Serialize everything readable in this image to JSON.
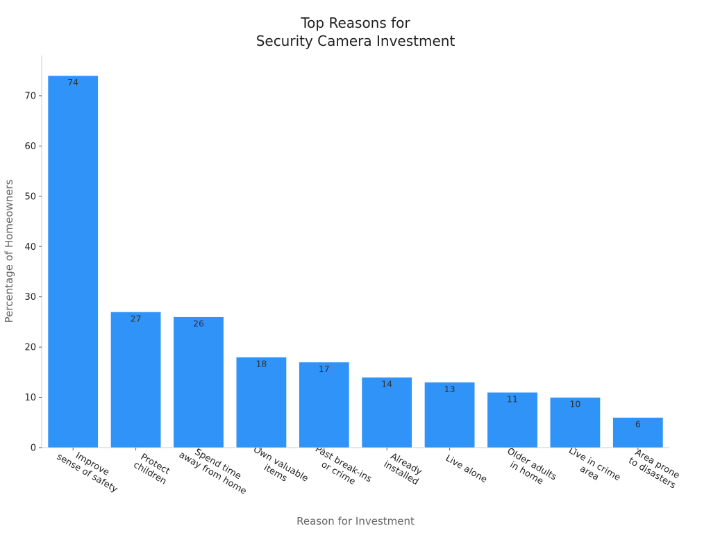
{
  "chart_data": {
    "type": "bar",
    "title_lines": [
      "Top Reasons for",
      "Security Camera Investment"
    ],
    "xlabel": "Reason for Investment",
    "ylabel": "Percentage of Homeowners",
    "categories": [
      [
        "Improve",
        "sense of safety"
      ],
      [
        "Protect",
        "children"
      ],
      [
        "Spend time",
        "away from home"
      ],
      [
        "Own valuable",
        "items"
      ],
      [
        "Past break-ins",
        "or crime"
      ],
      [
        "Already",
        "installed"
      ],
      [
        "Live alone"
      ],
      [
        "Older adults",
        "in home"
      ],
      [
        "Live in crime",
        "area"
      ],
      [
        "Area prone",
        "to disasters"
      ]
    ],
    "values": [
      74,
      27,
      26,
      18,
      17,
      14,
      13,
      11,
      10,
      6
    ],
    "ylim": [
      0,
      78
    ],
    "yticks": [
      0,
      10,
      20,
      30,
      40,
      50,
      60,
      70
    ],
    "grid": false,
    "bar_color": "#2f93f8",
    "axis_color": "#cccccc"
  }
}
